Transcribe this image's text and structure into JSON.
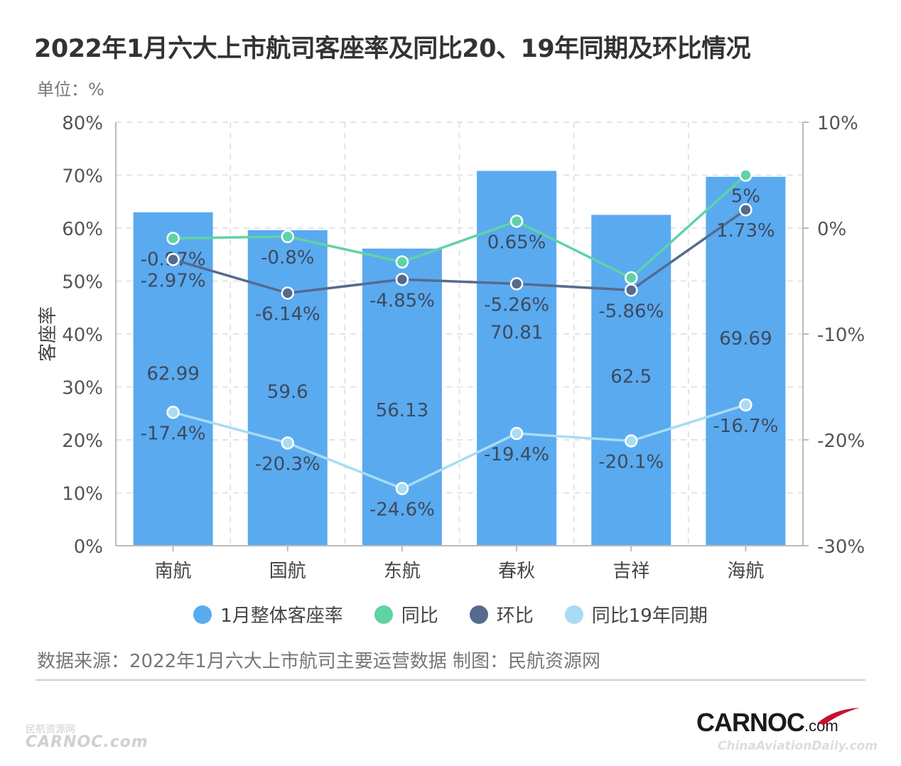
{
  "title": "2022年1月六大上市航司客座率及同比20、19年同期及环比情况",
  "unit": "单位：%",
  "source": "数据来源：2022年1月六大上市航司主要运营数据 制图：民航资源网",
  "watermark_left": [
    "民航资源网",
    "CARNOC.com"
  ],
  "logo": {
    "brand": "CARNOC",
    "suffix": ".com",
    "tagline": "ChinaAviationDaily.com"
  },
  "chart_data": {
    "type": "bar",
    "categories": [
      "南航",
      "国航",
      "东航",
      "春秋",
      "吉祥",
      "海航"
    ],
    "ylabel": "客座率",
    "ylim_left": [
      0,
      80
    ],
    "ylim_right": [
      -30,
      10
    ],
    "yticks_left": [
      "0%",
      "10%",
      "20%",
      "30%",
      "40%",
      "50%",
      "60%",
      "70%",
      "80%"
    ],
    "yticks_right": [
      "-30%",
      "-20%",
      "-10%",
      "0%",
      "10%"
    ],
    "grid": true,
    "legend_position": "bottom",
    "series": [
      {
        "name": "1月整体客座率",
        "kind": "bar",
        "axis": "left",
        "color": "#5aaaf0",
        "values": [
          62.99,
          59.6,
          56.13,
          70.81,
          62.5,
          69.69
        ],
        "labels": [
          "62.99",
          "59.6",
          "56.13",
          "70.81",
          "62.5",
          "69.69"
        ]
      },
      {
        "name": "同比",
        "kind": "line",
        "axis": "right",
        "color": "#5fd3a4",
        "values": [
          -0.97,
          -0.8,
          -3.2,
          0.65,
          -4.7,
          5
        ],
        "labels": [
          "-0.97%",
          "-0.8%",
          "",
          "0.65%",
          "",
          "5%"
        ]
      },
      {
        "name": "环比",
        "kind": "line",
        "axis": "right",
        "color": "#566a8e",
        "values": [
          -2.97,
          -6.14,
          -4.85,
          -5.26,
          -5.86,
          1.73
        ],
        "labels": [
          "-2.97%",
          "-6.14%",
          "-4.85%",
          "-5.26%",
          "-5.86%",
          "1.73%"
        ]
      },
      {
        "name": "同比19年同期",
        "kind": "line",
        "axis": "right",
        "color": "#a8dcf3",
        "values": [
          -17.4,
          -20.3,
          -24.6,
          -19.4,
          -20.1,
          -16.7
        ],
        "labels": [
          "-17.4%",
          "-20.3%",
          "-24.6%",
          "-19.4%",
          "-20.1%",
          "-16.7%"
        ]
      }
    ]
  }
}
